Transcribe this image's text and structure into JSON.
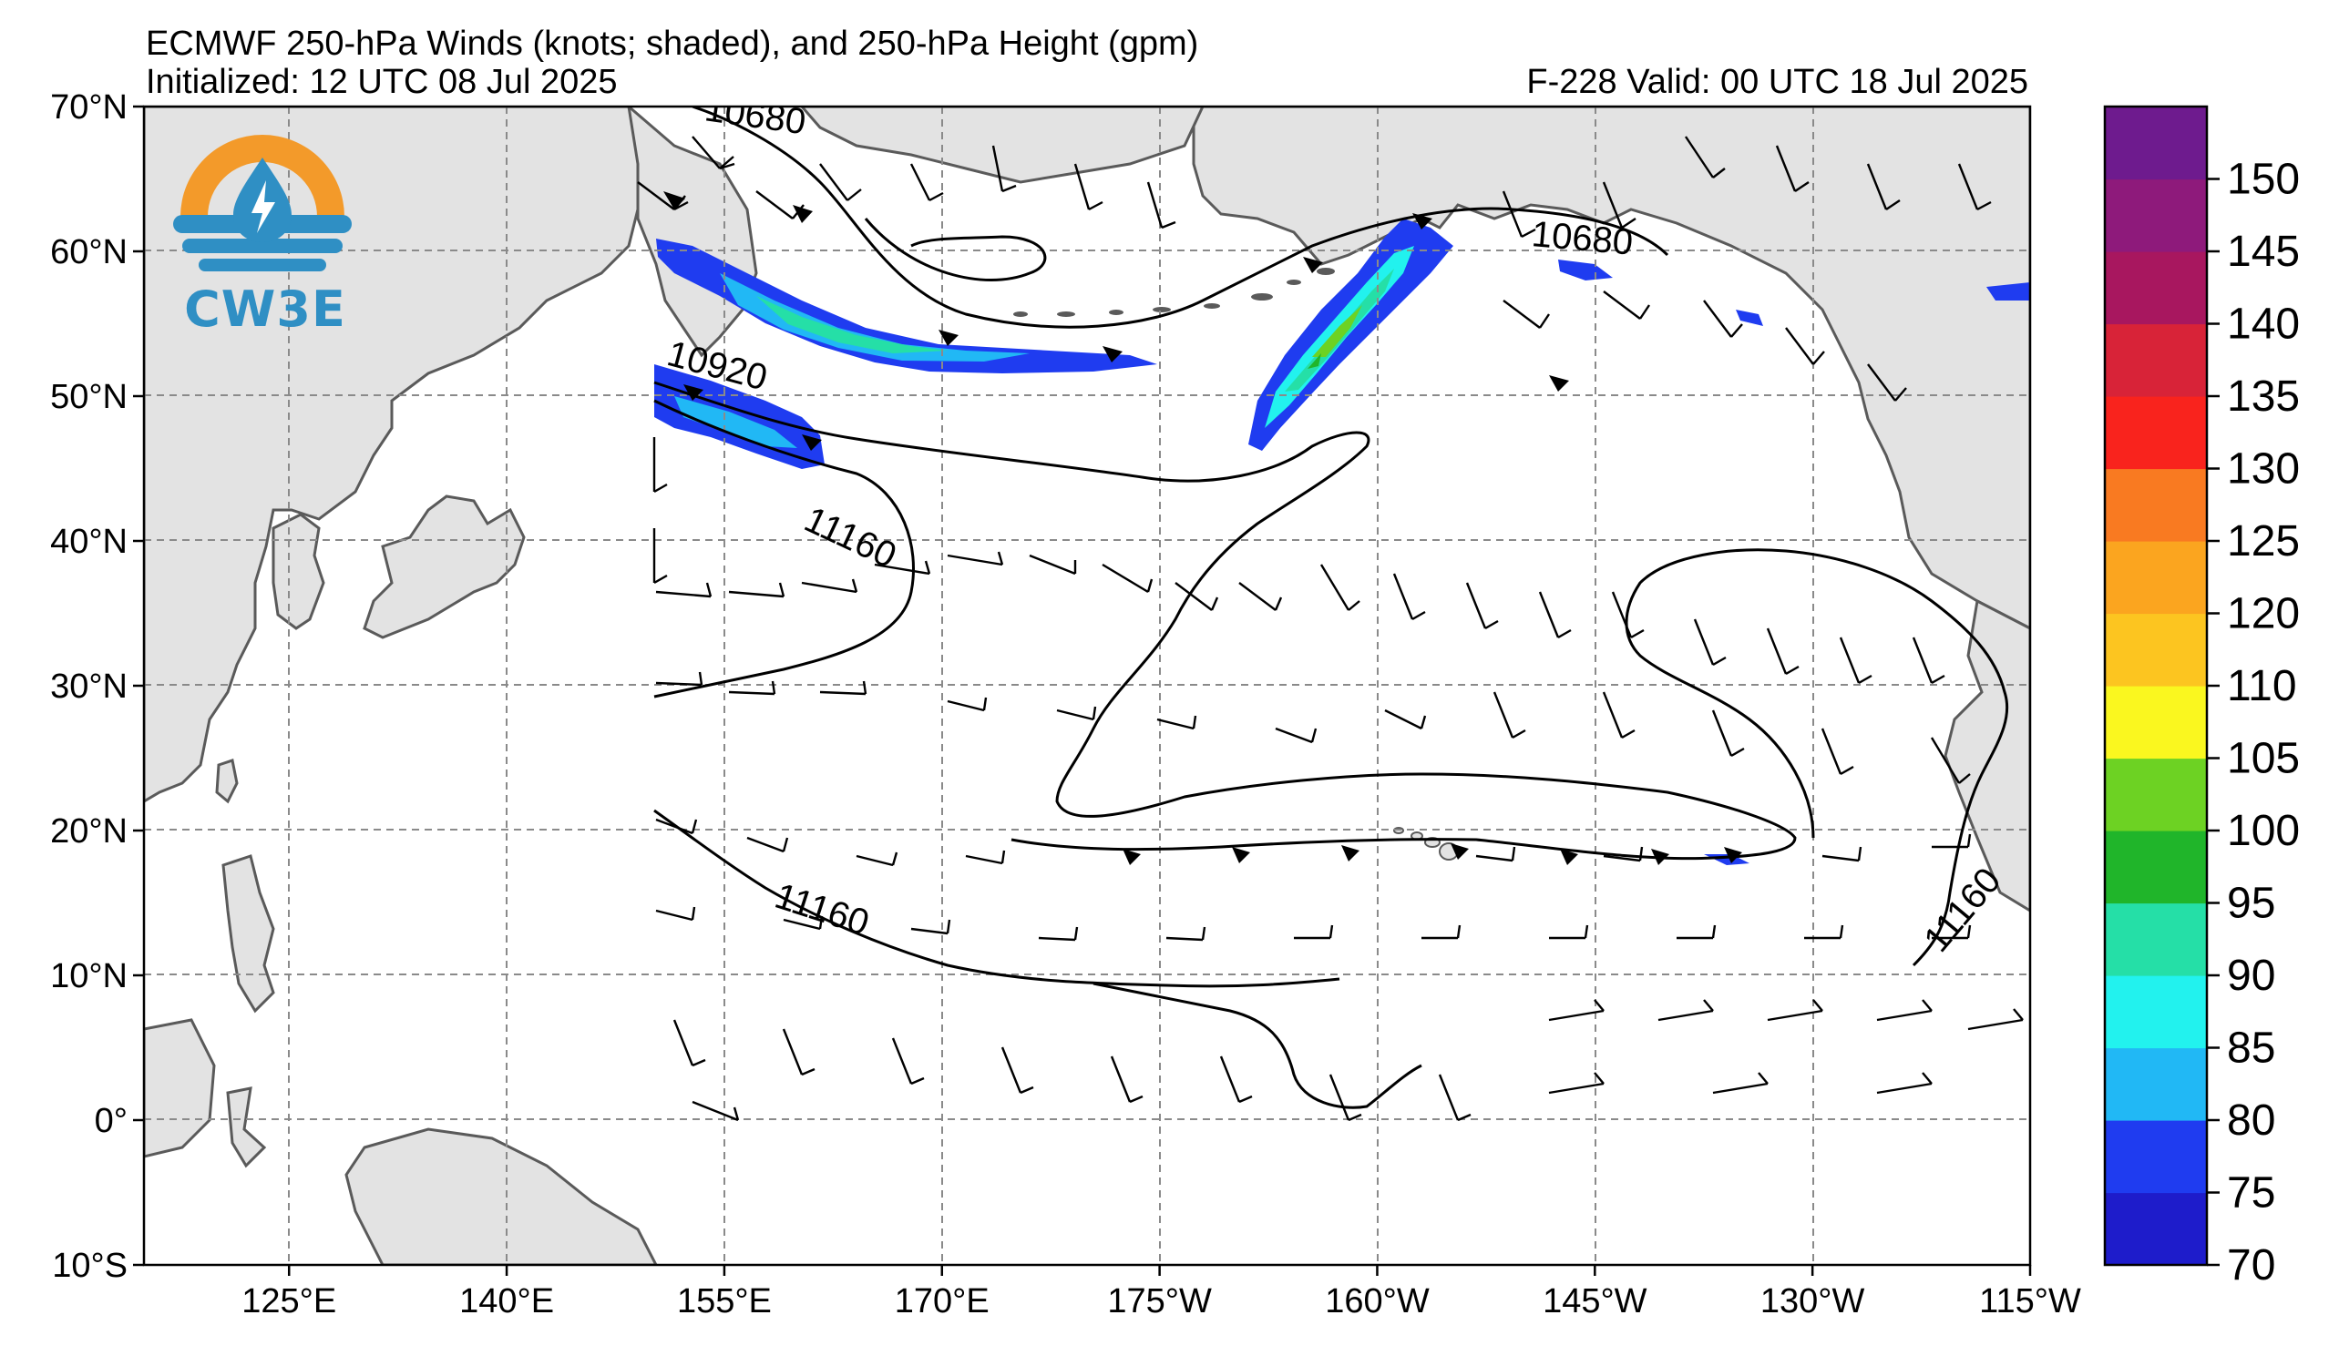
{
  "titles": {
    "main": "ECMWF 250-hPa Winds (knots; shaded), and 250-hPa Height (gpm)",
    "initialized": "Initialized: 12 UTC 08 Jul 2025",
    "valid": "F-228  Valid: 00 UTC 18 Jul 2025"
  },
  "logo": {
    "text": "CW3E",
    "colors": {
      "ring": "#f39a2a",
      "drop": "#2f8fc4",
      "waves": "#2f8fc4"
    }
  },
  "map": {
    "extent": {
      "lon_min": 115,
      "lon_max": 245,
      "lat_min": -10,
      "lat_max": 70
    },
    "lat_labels": [
      "70°N",
      "60°N",
      "50°N",
      "40°N",
      "30°N",
      "20°N",
      "10°N",
      "0°",
      "10°S"
    ],
    "lon_labels": [
      "125°E",
      "140°E",
      "155°E",
      "170°E",
      "175°W",
      "160°W",
      "145°W",
      "130°W",
      "115°W"
    ],
    "lat_ticks": [
      70,
      60,
      50,
      40,
      30,
      20,
      10,
      0,
      -10
    ],
    "lon_ticks": [
      125,
      140,
      155,
      170,
      185,
      200,
      215,
      230,
      245
    ],
    "grid": true,
    "land_color": "#e3e3e3",
    "coast_color": "#5a5a5a",
    "contour_labels": [
      {
        "text": "10680",
        "lon": 162,
        "lat": 69.3
      },
      {
        "text": "10680",
        "lon": 209,
        "lat": 60.6
      },
      {
        "text": "10920",
        "lon": 158.5,
        "lat": 52.2
      },
      {
        "text": "11160",
        "lon": 168,
        "lat": 40.3
      },
      {
        "text": "11160",
        "lon": 165,
        "lat": 14.5
      },
      {
        "text": "11160",
        "lon": 240,
        "lat": 15.5
      }
    ]
  },
  "colorbar": {
    "levels": [
      70,
      75,
      80,
      85,
      90,
      95,
      100,
      105,
      110,
      120,
      125,
      130,
      135,
      140,
      145,
      150,
      155
    ],
    "labels": [
      "70",
      "75",
      "80",
      "85",
      "90",
      "95",
      "100",
      "105",
      "110",
      "120",
      "125",
      "130",
      "135",
      "140",
      "145",
      "150"
    ],
    "colors": [
      "#1e1ccb",
      "#1f3cf0",
      "#21b8f5",
      "#22f2ee",
      "#25dfa7",
      "#20b52a",
      "#6dd223",
      "#faf71f",
      "#fcc520",
      "#fba51f",
      "#f97a21",
      "#f9231d",
      "#d82338",
      "#a8175f",
      "#8e1a7b",
      "#6e1b8e"
    ]
  }
}
